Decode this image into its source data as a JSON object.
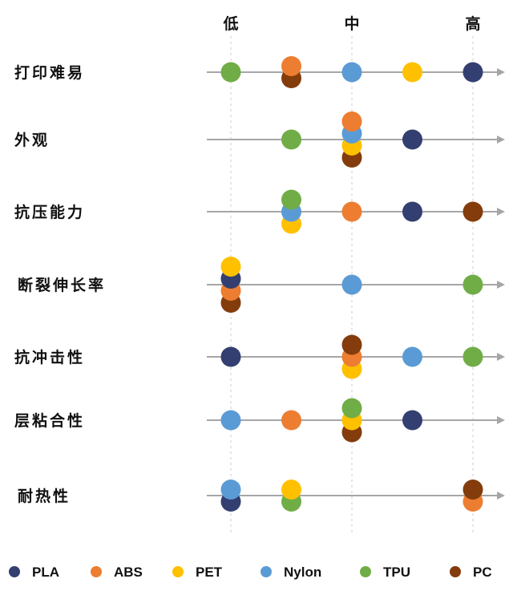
{
  "chart_data": {
    "type": "scatter",
    "title": "",
    "x_levels": [
      1,
      2,
      3,
      4,
      5
    ],
    "x_ticks": [
      {
        "value": 1,
        "label": "低"
      },
      {
        "value": 3,
        "label": "中"
      },
      {
        "value": 5,
        "label": "高"
      }
    ],
    "legend_position": "bottom",
    "series": [
      {
        "name": "PLA",
        "color": "#333f70"
      },
      {
        "name": "ABS",
        "color": "#ed7d31"
      },
      {
        "name": "PET",
        "color": "#ffc000"
      },
      {
        "name": "Nylon",
        "color": "#5b9bd5"
      },
      {
        "name": "TPU",
        "color": "#70ad47"
      },
      {
        "name": "PC",
        "color": "#843c0c"
      }
    ],
    "rows": [
      {
        "label": "打印难易",
        "values": {
          "PLA": 5,
          "ABS": 2,
          "PET": 4,
          "Nylon": 3,
          "TPU": 1,
          "PC": 2
        },
        "stacks": {
          "2": [
            "ABS",
            "PC"
          ]
        }
      },
      {
        "label": "外观",
        "values": {
          "PLA": 4,
          "ABS": 3,
          "PET": 3,
          "Nylon": 3,
          "TPU": 2,
          "PC": 3
        },
        "stacks": {
          "3": [
            "ABS",
            "Nylon",
            "PET",
            "PC"
          ]
        }
      },
      {
        "label": "抗压能力",
        "values": {
          "PLA": 4,
          "ABS": 3,
          "PET": 2,
          "Nylon": 2,
          "TPU": 2,
          "PC": 5
        },
        "stacks": {
          "2": [
            "TPU",
            "Nylon",
            "PET"
          ]
        }
      },
      {
        "label": "断裂伸长率",
        "values": {
          "PLA": 1,
          "ABS": 1,
          "PET": 1,
          "Nylon": 3,
          "TPU": 5,
          "PC": 1
        },
        "stacks": {
          "1": [
            "PET",
            "PLA",
            "ABS",
            "PC"
          ]
        }
      },
      {
        "label": "抗冲击性",
        "values": {
          "PLA": 1,
          "ABS": 3,
          "PET": 3,
          "Nylon": 4,
          "TPU": 5,
          "PC": 3
        },
        "stacks": {
          "3": [
            "PC",
            "ABS",
            "PET"
          ]
        }
      },
      {
        "label": "层粘合性",
        "values": {
          "PLA": 4,
          "ABS": 2,
          "PET": 3,
          "Nylon": 1,
          "TPU": 3,
          "PC": 3
        },
        "stacks": {
          "3": [
            "TPU",
            "PET",
            "PC"
          ]
        }
      },
      {
        "label": "耐热性",
        "values": {
          "PLA": 1,
          "ABS": 5,
          "PET": 2,
          "Nylon": 1,
          "TPU": 2,
          "PC": 5
        },
        "stacks": {
          "1": [
            "Nylon",
            "PLA"
          ],
          "2": [
            "PET",
            "TPU"
          ],
          "5": [
            "PC",
            "ABS"
          ]
        }
      }
    ]
  }
}
